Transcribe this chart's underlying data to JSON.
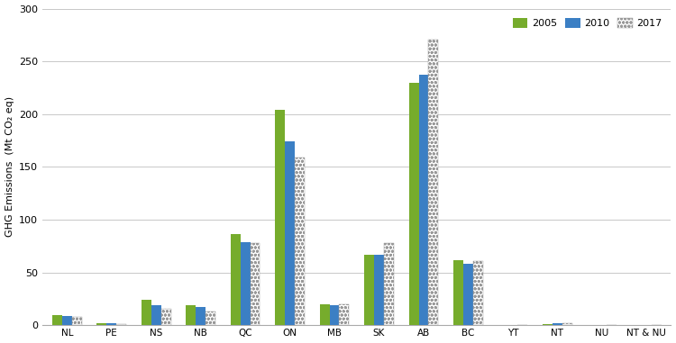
{
  "categories": [
    "NL",
    "PE",
    "NS",
    "NB",
    "QC",
    "ON",
    "MB",
    "SK",
    "AB",
    "BC",
    "YT",
    "NT",
    "NU",
    "NT & NU"
  ],
  "values_2005": [
    10,
    2,
    24,
    19,
    86,
    204,
    20,
    67,
    230,
    62,
    0.5,
    1.5,
    0.4,
    0
  ],
  "values_2010": [
    9,
    2,
    19,
    17,
    79,
    174,
    19,
    67,
    237,
    58,
    0.4,
    2,
    0.4,
    0
  ],
  "values_2017": [
    8,
    1.5,
    16,
    13,
    78,
    159,
    20,
    78,
    271,
    61,
    0.4,
    1.8,
    0.4,
    0
  ],
  "color_2005": "#76AC2C",
  "color_2010": "#3B7FC4",
  "ylabel": "GHG Emissions  (Mt CO₂ eq)",
  "ylim": [
    0,
    300
  ],
  "yticks": [
    0,
    50,
    100,
    150,
    200,
    250,
    300
  ],
  "background_color": "#FFFFFF",
  "grid_color": "#C8C8C8",
  "bar_width": 0.22,
  "figsize": [
    7.5,
    3.81
  ],
  "dpi": 100
}
